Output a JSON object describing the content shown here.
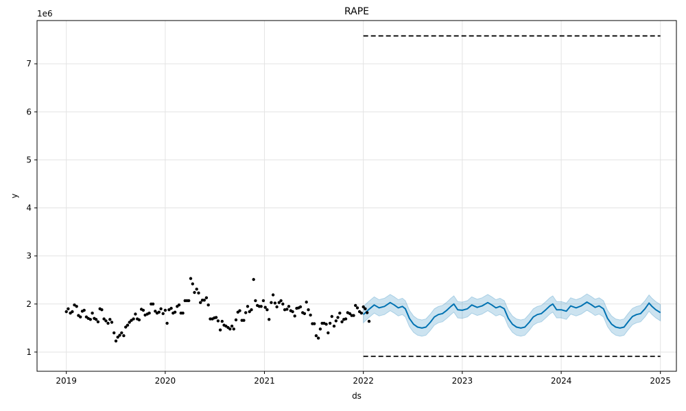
{
  "chart_data": {
    "type": "line",
    "title": "RAPE",
    "xlabel": "ds",
    "ylabel": "y",
    "y_multiplier_label": "1e6",
    "xlim": [
      "2018-09-15",
      "2025-03-01"
    ],
    "ylim": [
      0.6,
      7.9
    ],
    "x_ticks": [
      {
        "date": "2019-01-01",
        "label": "2019"
      },
      {
        "date": "2020-01-01",
        "label": "2020"
      },
      {
        "date": "2021-01-01",
        "label": "2021"
      },
      {
        "date": "2022-01-01",
        "label": "2022"
      },
      {
        "date": "2023-01-01",
        "label": "2023"
      },
      {
        "date": "2024-01-01",
        "label": "2024"
      },
      {
        "date": "2025-01-01",
        "label": "2025"
      }
    ],
    "y_ticks": [
      {
        "value": 1,
        "label": "1"
      },
      {
        "value": 2,
        "label": "2"
      },
      {
        "value": 3,
        "label": "3"
      },
      {
        "value": 4,
        "label": "4"
      },
      {
        "value": 5,
        "label": "5"
      },
      {
        "value": 6,
        "label": "6"
      },
      {
        "value": 7,
        "label": "7"
      }
    ],
    "grid": true,
    "colors": {
      "observed": "#000000",
      "forecast": "#0072B2",
      "interval": "#0072B2",
      "cap": "#000000"
    },
    "cap_lines": [
      {
        "start": "2022-01-01",
        "end": "2025-01-01",
        "value": 7.58
      },
      {
        "start": "2022-01-01",
        "end": "2025-01-01",
        "value": 0.91
      }
    ],
    "observed": [
      [
        "2019-01-01",
        1.84
      ],
      [
        "2019-01-08",
        1.9
      ],
      [
        "2019-01-16",
        1.81
      ],
      [
        "2019-01-23",
        1.84
      ],
      [
        "2019-01-31",
        1.98
      ],
      [
        "2019-02-08",
        1.95
      ],
      [
        "2019-02-15",
        1.76
      ],
      [
        "2019-02-22",
        1.73
      ],
      [
        "2019-03-01",
        1.85
      ],
      [
        "2019-03-08",
        1.87
      ],
      [
        "2019-03-16",
        1.73
      ],
      [
        "2019-03-23",
        1.7
      ],
      [
        "2019-03-31",
        1.68
      ],
      [
        "2019-04-07",
        1.81
      ],
      [
        "2019-04-14",
        1.7
      ],
      [
        "2019-04-21",
        1.68
      ],
      [
        "2019-04-28",
        1.63
      ],
      [
        "2019-05-05",
        1.9
      ],
      [
        "2019-05-12",
        1.88
      ],
      [
        "2019-05-20",
        1.69
      ],
      [
        "2019-05-27",
        1.65
      ],
      [
        "2019-06-04",
        1.6
      ],
      [
        "2019-06-11",
        1.68
      ],
      [
        "2019-06-18",
        1.62
      ],
      [
        "2019-06-26",
        1.4
      ],
      [
        "2019-07-03",
        1.23
      ],
      [
        "2019-07-10",
        1.31
      ],
      [
        "2019-07-17",
        1.35
      ],
      [
        "2019-07-24",
        1.4
      ],
      [
        "2019-08-01",
        1.34
      ],
      [
        "2019-08-08",
        1.52
      ],
      [
        "2019-08-15",
        1.56
      ],
      [
        "2019-08-22",
        1.62
      ],
      [
        "2019-08-29",
        1.66
      ],
      [
        "2019-09-06",
        1.69
      ],
      [
        "2019-09-13",
        1.79
      ],
      [
        "2019-09-20",
        1.69
      ],
      [
        "2019-09-27",
        1.67
      ],
      [
        "2019-10-05",
        1.89
      ],
      [
        "2019-10-12",
        1.87
      ],
      [
        "2019-10-19",
        1.77
      ],
      [
        "2019-10-27",
        1.79
      ],
      [
        "2019-11-03",
        1.81
      ],
      [
        "2019-11-10",
        2.0
      ],
      [
        "2019-11-17",
        2.0
      ],
      [
        "2019-11-25",
        1.85
      ],
      [
        "2019-12-02",
        1.81
      ],
      [
        "2019-12-09",
        1.83
      ],
      [
        "2019-12-16",
        1.9
      ],
      [
        "2019-12-24",
        1.8
      ],
      [
        "2020-01-01",
        1.87
      ],
      [
        "2020-01-08",
        1.6
      ],
      [
        "2020-01-15",
        1.88
      ],
      [
        "2020-01-23",
        1.91
      ],
      [
        "2020-01-30",
        1.81
      ],
      [
        "2020-02-06",
        1.83
      ],
      [
        "2020-02-14",
        1.95
      ],
      [
        "2020-02-21",
        1.98
      ],
      [
        "2020-02-28",
        1.81
      ],
      [
        "2020-03-06",
        1.81
      ],
      [
        "2020-03-14",
        2.07
      ],
      [
        "2020-03-21",
        2.07
      ],
      [
        "2020-03-28",
        2.07
      ],
      [
        "2020-04-04",
        2.53
      ],
      [
        "2020-04-11",
        2.42
      ],
      [
        "2020-04-18",
        2.24
      ],
      [
        "2020-04-26",
        2.31
      ],
      [
        "2020-05-03",
        2.23
      ],
      [
        "2020-05-10",
        2.03
      ],
      [
        "2020-05-17",
        2.08
      ],
      [
        "2020-05-24",
        2.08
      ],
      [
        "2020-06-01",
        2.13
      ],
      [
        "2020-06-08",
        1.98
      ],
      [
        "2020-06-15",
        1.69
      ],
      [
        "2020-06-23",
        1.69
      ],
      [
        "2020-06-30",
        1.71
      ],
      [
        "2020-07-07",
        1.72
      ],
      [
        "2020-07-14",
        1.65
      ],
      [
        "2020-07-22",
        1.46
      ],
      [
        "2020-07-29",
        1.64
      ],
      [
        "2020-08-05",
        1.56
      ],
      [
        "2020-08-12",
        1.54
      ],
      [
        "2020-08-20",
        1.51
      ],
      [
        "2020-08-27",
        1.48
      ],
      [
        "2020-09-03",
        1.54
      ],
      [
        "2020-09-10",
        1.48
      ],
      [
        "2020-09-18",
        1.67
      ],
      [
        "2020-09-25",
        1.83
      ],
      [
        "2020-10-02",
        1.86
      ],
      [
        "2020-10-10",
        1.66
      ],
      [
        "2020-10-17",
        1.66
      ],
      [
        "2020-10-24",
        1.82
      ],
      [
        "2020-10-31",
        1.95
      ],
      [
        "2020-11-07",
        1.84
      ],
      [
        "2020-11-14",
        1.88
      ],
      [
        "2020-11-22",
        2.51
      ],
      [
        "2020-11-29",
        2.07
      ],
      [
        "2020-12-06",
        1.97
      ],
      [
        "2020-12-13",
        1.95
      ],
      [
        "2020-12-20",
        1.95
      ],
      [
        "2020-12-28",
        2.07
      ],
      [
        "2021-01-04",
        1.93
      ],
      [
        "2021-01-11",
        1.88
      ],
      [
        "2021-01-18",
        1.68
      ],
      [
        "2021-01-26",
        2.03
      ],
      [
        "2021-02-02",
        2.19
      ],
      [
        "2021-02-09",
        2.02
      ],
      [
        "2021-02-16",
        1.94
      ],
      [
        "2021-02-24",
        2.03
      ],
      [
        "2021-03-03",
        2.07
      ],
      [
        "2021-03-10",
        2.0
      ],
      [
        "2021-03-17",
        1.88
      ],
      [
        "2021-03-25",
        1.89
      ],
      [
        "2021-04-01",
        1.95
      ],
      [
        "2021-04-08",
        1.86
      ],
      [
        "2021-04-15",
        1.84
      ],
      [
        "2021-04-23",
        1.75
      ],
      [
        "2021-04-30",
        1.91
      ],
      [
        "2021-05-07",
        1.92
      ],
      [
        "2021-05-14",
        1.94
      ],
      [
        "2021-05-22",
        1.82
      ],
      [
        "2021-05-29",
        1.8
      ],
      [
        "2021-06-05",
        2.04
      ],
      [
        "2021-06-12",
        1.88
      ],
      [
        "2021-06-20",
        1.77
      ],
      [
        "2021-06-27",
        1.59
      ],
      [
        "2021-07-04",
        1.59
      ],
      [
        "2021-07-11",
        1.34
      ],
      [
        "2021-07-19",
        1.29
      ],
      [
        "2021-07-26",
        1.48
      ],
      [
        "2021-08-02",
        1.6
      ],
      [
        "2021-08-09",
        1.6
      ],
      [
        "2021-08-17",
        1.58
      ],
      [
        "2021-08-24",
        1.4
      ],
      [
        "2021-08-31",
        1.6
      ],
      [
        "2021-09-07",
        1.74
      ],
      [
        "2021-09-15",
        1.54
      ],
      [
        "2021-09-22",
        1.65
      ],
      [
        "2021-09-29",
        1.72
      ],
      [
        "2021-10-06",
        1.81
      ],
      [
        "2021-10-14",
        1.63
      ],
      [
        "2021-10-21",
        1.68
      ],
      [
        "2021-10-28",
        1.69
      ],
      [
        "2021-11-04",
        1.82
      ],
      [
        "2021-11-12",
        1.8
      ],
      [
        "2021-11-19",
        1.76
      ],
      [
        "2021-11-26",
        1.76
      ],
      [
        "2021-12-03",
        1.97
      ],
      [
        "2021-12-10",
        1.92
      ],
      [
        "2021-12-18",
        1.84
      ],
      [
        "2021-12-25",
        1.81
      ],
      [
        "2022-01-01",
        1.94
      ],
      [
        "2022-01-08",
        1.9
      ],
      [
        "2022-01-15",
        1.82
      ],
      [
        "2022-01-22",
        1.64
      ]
    ],
    "forecast": [
      [
        "2022-01-01",
        1.78
      ],
      [
        "2022-01-20",
        1.88
      ],
      [
        "2022-02-10",
        1.98
      ],
      [
        "2022-02-28",
        1.92
      ],
      [
        "2022-03-20",
        1.95
      ],
      [
        "2022-04-10",
        2.03
      ],
      [
        "2022-04-25",
        1.98
      ],
      [
        "2022-05-10",
        1.92
      ],
      [
        "2022-05-25",
        1.95
      ],
      [
        "2022-06-05",
        1.9
      ],
      [
        "2022-06-20",
        1.7
      ],
      [
        "2022-07-05",
        1.58
      ],
      [
        "2022-07-20",
        1.52
      ],
      [
        "2022-08-05",
        1.5
      ],
      [
        "2022-08-20",
        1.52
      ],
      [
        "2022-09-05",
        1.62
      ],
      [
        "2022-09-20",
        1.73
      ],
      [
        "2022-10-05",
        1.78
      ],
      [
        "2022-10-20",
        1.8
      ],
      [
        "2022-11-05",
        1.87
      ],
      [
        "2022-11-20",
        1.95
      ],
      [
        "2022-12-01",
        2.0
      ],
      [
        "2022-12-15",
        1.88
      ],
      [
        "2023-01-01",
        1.87
      ],
      [
        "2023-01-20",
        1.9
      ],
      [
        "2023-02-05",
        1.98
      ],
      [
        "2023-02-25",
        1.93
      ],
      [
        "2023-03-15",
        1.96
      ],
      [
        "2023-04-05",
        2.03
      ],
      [
        "2023-04-20",
        1.98
      ],
      [
        "2023-05-05",
        1.92
      ],
      [
        "2023-05-20",
        1.95
      ],
      [
        "2023-06-05",
        1.9
      ],
      [
        "2023-06-20",
        1.7
      ],
      [
        "2023-07-05",
        1.58
      ],
      [
        "2023-07-20",
        1.52
      ],
      [
        "2023-08-05",
        1.5
      ],
      [
        "2023-08-20",
        1.52
      ],
      [
        "2023-09-05",
        1.62
      ],
      [
        "2023-09-20",
        1.73
      ],
      [
        "2023-10-05",
        1.78
      ],
      [
        "2023-10-20",
        1.8
      ],
      [
        "2023-11-05",
        1.88
      ],
      [
        "2023-11-20",
        1.96
      ],
      [
        "2023-12-01",
        2.0
      ],
      [
        "2023-12-15",
        1.88
      ],
      [
        "2024-01-01",
        1.88
      ],
      [
        "2024-01-20",
        1.85
      ],
      [
        "2024-02-05",
        1.96
      ],
      [
        "2024-02-25",
        1.92
      ],
      [
        "2024-03-15",
        1.96
      ],
      [
        "2024-04-05",
        2.04
      ],
      [
        "2024-04-20",
        1.99
      ],
      [
        "2024-05-05",
        1.93
      ],
      [
        "2024-05-20",
        1.96
      ],
      [
        "2024-06-05",
        1.9
      ],
      [
        "2024-06-20",
        1.7
      ],
      [
        "2024-07-05",
        1.58
      ],
      [
        "2024-07-20",
        1.52
      ],
      [
        "2024-08-05",
        1.5
      ],
      [
        "2024-08-20",
        1.52
      ],
      [
        "2024-09-05",
        1.64
      ],
      [
        "2024-09-20",
        1.74
      ],
      [
        "2024-10-05",
        1.78
      ],
      [
        "2024-10-20",
        1.8
      ],
      [
        "2024-11-05",
        1.9
      ],
      [
        "2024-11-20",
        2.02
      ],
      [
        "2024-12-01",
        1.95
      ],
      [
        "2024-12-15",
        1.88
      ],
      [
        "2025-01-01",
        1.82
      ]
    ],
    "interval_halfwidth": 0.17
  }
}
